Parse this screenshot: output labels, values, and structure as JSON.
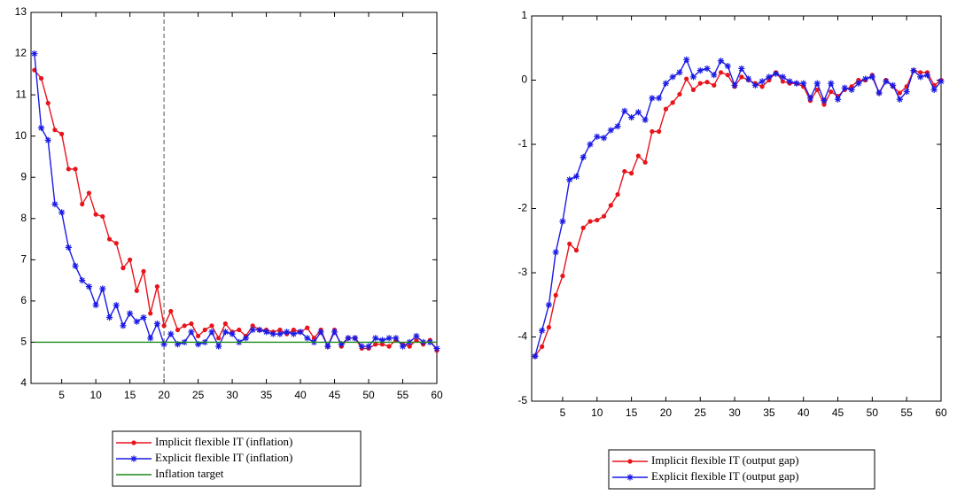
{
  "chart_data": [
    {
      "type": "line",
      "legend": "below",
      "vline": 20,
      "x": [
        1,
        2,
        3,
        4,
        5,
        6,
        7,
        8,
        9,
        10,
        11,
        12,
        13,
        14,
        15,
        16,
        17,
        18,
        19,
        20,
        21,
        22,
        23,
        24,
        25,
        26,
        27,
        28,
        29,
        30,
        31,
        32,
        33,
        34,
        35,
        36,
        37,
        38,
        39,
        40,
        41,
        42,
        43,
        44,
        45,
        46,
        47,
        48,
        49,
        50,
        51,
        52,
        53,
        54,
        55,
        56,
        57,
        58,
        59,
        60
      ],
      "xlim": [
        0.5,
        60
      ],
      "xticks": [
        5,
        10,
        15,
        20,
        25,
        30,
        35,
        40,
        45,
        50,
        55,
        60
      ],
      "ylim": [
        4,
        13
      ],
      "yticks": [
        4,
        5,
        6,
        7,
        8,
        9,
        10,
        11,
        12,
        13
      ],
      "series": [
        {
          "name": "Implicit flexible IT (inflation)",
          "color": "#e8141b",
          "marker": "dot",
          "values": [
            11.6,
            11.4,
            10.8,
            10.15,
            10.05,
            9.2,
            9.2,
            8.35,
            8.62,
            8.1,
            8.05,
            7.5,
            7.4,
            6.8,
            7.0,
            6.25,
            6.72,
            5.7,
            6.35,
            5.4,
            5.75,
            5.3,
            5.4,
            5.45,
            5.15,
            5.3,
            5.4,
            5.1,
            5.45,
            5.25,
            5.3,
            5.15,
            5.4,
            5.3,
            5.3,
            5.25,
            5.3,
            5.2,
            5.3,
            5.25,
            5.35,
            5.1,
            5.3,
            4.9,
            5.3,
            4.9,
            5.1,
            5.1,
            4.85,
            4.85,
            4.95,
            4.95,
            4.9,
            5.05,
            4.95,
            4.9,
            5.05,
            4.95,
            5.05,
            4.8
          ]
        },
        {
          "name": "Explicit flexible IT (inflation)",
          "color": "#1a1ae6",
          "marker": "star",
          "values": [
            12.0,
            10.2,
            9.9,
            8.35,
            8.15,
            7.3,
            6.85,
            6.5,
            6.35,
            5.9,
            6.3,
            5.6,
            5.9,
            5.4,
            5.7,
            5.5,
            5.6,
            5.1,
            5.45,
            4.95,
            5.2,
            4.95,
            5.0,
            5.25,
            4.95,
            5.0,
            5.25,
            4.9,
            5.25,
            5.2,
            5.0,
            5.1,
            5.3,
            5.3,
            5.25,
            5.2,
            5.2,
            5.25,
            5.2,
            5.25,
            5.1,
            5.0,
            5.25,
            4.9,
            5.25,
            4.95,
            5.1,
            5.1,
            4.9,
            4.9,
            5.1,
            5.05,
            5.1,
            5.1,
            4.9,
            5.0,
            5.15,
            5.0,
            5.0,
            4.85
          ]
        },
        {
          "name": "Inflation target",
          "color": "#1a8a1a",
          "marker": "none",
          "values": [
            5,
            5,
            5,
            5,
            5,
            5,
            5,
            5,
            5,
            5,
            5,
            5,
            5,
            5,
            5,
            5,
            5,
            5,
            5,
            5,
            5,
            5,
            5,
            5,
            5,
            5,
            5,
            5,
            5,
            5,
            5,
            5,
            5,
            5,
            5,
            5,
            5,
            5,
            5,
            5,
            5,
            5,
            5,
            5,
            5,
            5,
            5,
            5,
            5,
            5,
            5,
            5,
            5,
            5,
            5,
            5,
            5,
            5,
            5,
            5
          ]
        }
      ]
    },
    {
      "type": "line",
      "legend": "below",
      "x": [
        1,
        2,
        3,
        4,
        5,
        6,
        7,
        8,
        9,
        10,
        11,
        12,
        13,
        14,
        15,
        16,
        17,
        18,
        19,
        20,
        21,
        22,
        23,
        24,
        25,
        26,
        27,
        28,
        29,
        30,
        31,
        32,
        33,
        34,
        35,
        36,
        37,
        38,
        39,
        40,
        41,
        42,
        43,
        44,
        45,
        46,
        47,
        48,
        49,
        50,
        51,
        52,
        53,
        54,
        55,
        56,
        57,
        58,
        59,
        60
      ],
      "xlim": [
        0.5,
        60
      ],
      "xticks": [
        5,
        10,
        15,
        20,
        25,
        30,
        35,
        40,
        45,
        50,
        55,
        60
      ],
      "ylim": [
        -5,
        1
      ],
      "yticks": [
        -5,
        -4,
        -3,
        -2,
        -1,
        0,
        1
      ],
      "series": [
        {
          "name": "Implicit flexible IT (output gap)",
          "color": "#e8141b",
          "marker": "dot",
          "values": [
            -4.3,
            -4.15,
            -3.85,
            -3.35,
            -3.05,
            -2.55,
            -2.65,
            -2.3,
            -2.2,
            -2.18,
            -2.12,
            -1.95,
            -1.78,
            -1.42,
            -1.45,
            -1.18,
            -1.28,
            -0.8,
            -0.8,
            -0.45,
            -0.35,
            -0.22,
            0.02,
            -0.15,
            -0.05,
            -0.03,
            -0.08,
            0.12,
            0.08,
            -0.1,
            0.05,
            0.0,
            -0.05,
            -0.1,
            0.0,
            0.12,
            -0.02,
            -0.05,
            -0.05,
            -0.1,
            -0.32,
            -0.15,
            -0.38,
            -0.18,
            -0.25,
            -0.15,
            -0.1,
            0.0,
            0.0,
            0.08,
            -0.2,
            0.0,
            -0.1,
            -0.2,
            -0.1,
            0.15,
            0.12,
            0.12,
            -0.08,
            0.0
          ]
        },
        {
          "name": "Explicit flexible IT (output gap)",
          "color": "#1a1ae6",
          "marker": "star",
          "values": [
            -4.3,
            -3.9,
            -3.5,
            -2.68,
            -2.2,
            -1.55,
            -1.5,
            -1.2,
            -1.0,
            -0.88,
            -0.9,
            -0.78,
            -0.72,
            -0.48,
            -0.58,
            -0.5,
            -0.62,
            -0.28,
            -0.28,
            -0.05,
            0.05,
            0.12,
            0.32,
            0.05,
            0.15,
            0.18,
            0.08,
            0.3,
            0.22,
            -0.08,
            0.18,
            0.02,
            -0.08,
            -0.02,
            0.05,
            0.1,
            0.05,
            -0.02,
            -0.05,
            -0.05,
            -0.28,
            -0.05,
            -0.32,
            -0.05,
            -0.3,
            -0.12,
            -0.15,
            -0.05,
            0.02,
            0.05,
            -0.2,
            -0.02,
            -0.08,
            -0.3,
            -0.18,
            0.15,
            0.05,
            0.08,
            -0.15,
            -0.02
          ]
        }
      ]
    }
  ]
}
